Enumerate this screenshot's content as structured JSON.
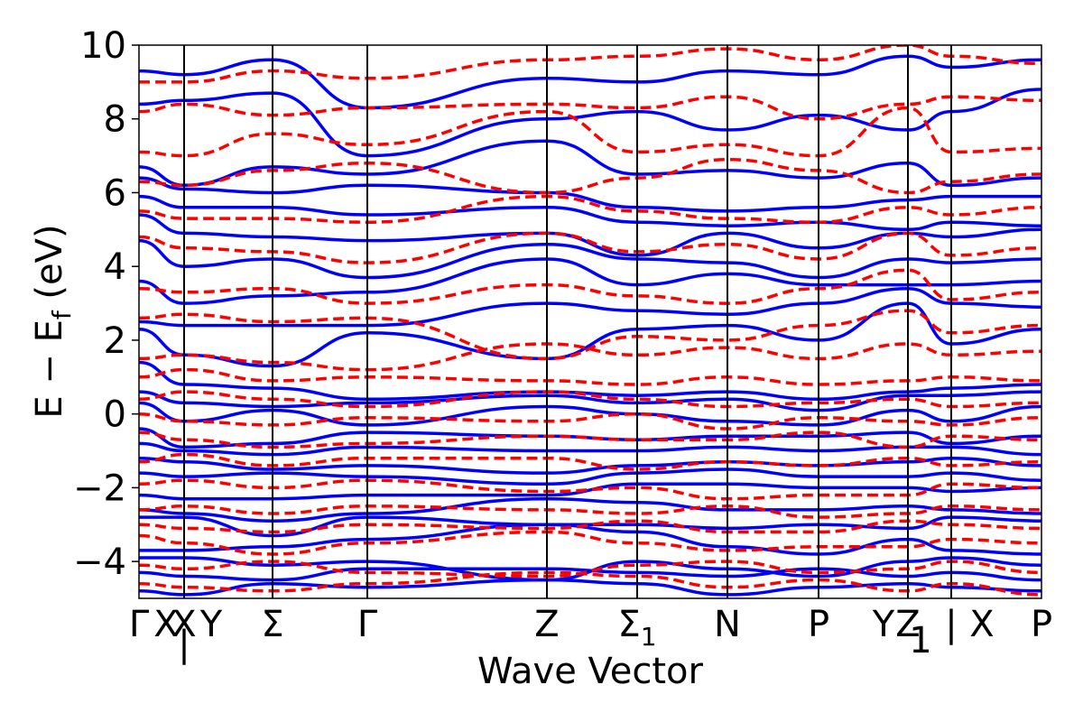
{
  "chart_data": {
    "type": "line",
    "title": "",
    "xlabel": "Wave Vector",
    "ylabel": "E − E_f (eV)",
    "ylabel_parts": {
      "main": "E − E",
      "sub": "f",
      "tail": " (eV)"
    },
    "ylim": [
      -5,
      10
    ],
    "yticks": [
      -4,
      -2,
      0,
      2,
      4,
      6,
      8,
      10
    ],
    "ytick_labels": [
      "−4",
      "−2",
      "0",
      "2",
      "4",
      "6",
      "8",
      "10"
    ],
    "grid": false,
    "legend": "none",
    "colors": {
      "series_a": "#0000ff",
      "series_b": "#ff0000",
      "axes": "#000000"
    },
    "series_styles": [
      {
        "name": "",
        "color": "#0000ff",
        "dash": "solid"
      },
      {
        "name": "",
        "color": "#ff0000",
        "dash": "dashed"
      }
    ],
    "kpath": [
      {
        "label": "Γ",
        "sub": "",
        "x": 0.0,
        "line": false
      },
      {
        "label": "X",
        "sub": "",
        "x": 0.03,
        "line": false
      },
      {
        "label": "X",
        "sub": "",
        "x": 0.05,
        "line": true
      },
      {
        "label": "|",
        "sub": "",
        "x": 0.05,
        "line": false,
        "dy": 22
      },
      {
        "label": "Y",
        "sub": "",
        "x": 0.08,
        "line": false
      },
      {
        "label": "Σ",
        "sub": "",
        "x": 0.148,
        "line": true
      },
      {
        "label": "Γ",
        "sub": "",
        "x": 0.253,
        "line": true
      },
      {
        "label": "Z",
        "sub": "",
        "x": 0.452,
        "line": true
      },
      {
        "label": "Σ",
        "sub": "1",
        "x": 0.552,
        "line": true
      },
      {
        "label": "N",
        "sub": "",
        "x": 0.652,
        "line": true
      },
      {
        "label": "P",
        "sub": "",
        "x": 0.753,
        "line": true
      },
      {
        "label": "Y",
        "sub": "",
        "x": 0.825,
        "line": false
      },
      {
        "label": "Z",
        "sub": "",
        "x": 0.852,
        "line": true
      },
      {
        "label": "1",
        "sub": "",
        "x": 0.866,
        "line": false,
        "dy": 18
      },
      {
        "label": "|",
        "sub": "",
        "x": 0.9,
        "line": true
      },
      {
        "label": "X",
        "sub": "",
        "x": 0.934,
        "line": false
      },
      {
        "label": "P",
        "sub": "",
        "x": 1.0,
        "line": false
      }
    ],
    "band_segments": [
      0.0,
      0.05,
      0.148,
      0.253,
      0.452,
      0.552,
      0.652,
      0.753,
      0.852,
      0.9,
      1.0
    ],
    "series": [
      {
        "name": "",
        "bands": [
          [
            -4.8,
            -4.9,
            -4.6,
            -4.7,
            -4.5,
            -4.6,
            -4.9,
            -4.7,
            -4.6,
            -4.7,
            -4.8
          ],
          [
            -4.3,
            -4.4,
            -4.5,
            -4.2,
            -4.2,
            -4.3,
            -4.4,
            -4.2,
            -4.4,
            -4.3,
            -4.5
          ],
          [
            -3.9,
            -3.9,
            -4.1,
            -4.0,
            -4.5,
            -4.0,
            -4.2,
            -4.4,
            -4.0,
            -3.9,
            -4.1
          ],
          [
            -3.7,
            -3.7,
            -3.6,
            -3.4,
            -3.0,
            -3.2,
            -3.6,
            -3.8,
            -3.4,
            -3.7,
            -3.8
          ],
          [
            -2.8,
            -2.8,
            -3.3,
            -2.8,
            -3.0,
            -3.0,
            -3.1,
            -3.0,
            -3.1,
            -2.8,
            -2.9
          ],
          [
            -2.6,
            -2.7,
            -2.9,
            -2.7,
            -2.3,
            -2.4,
            -2.6,
            -2.6,
            -2.5,
            -2.6,
            -2.7
          ],
          [
            -2.2,
            -2.3,
            -2.3,
            -2.2,
            -2.2,
            -1.9,
            -1.9,
            -2.0,
            -2.0,
            -2.1,
            -2.0
          ],
          [
            -1.6,
            -1.7,
            -1.6,
            -1.7,
            -1.9,
            -1.6,
            -1.5,
            -1.7,
            -1.7,
            -1.6,
            -1.8
          ],
          [
            -1.2,
            -1.3,
            -1.5,
            -1.4,
            -1.6,
            -1.4,
            -1.3,
            -1.4,
            -1.3,
            -1.2,
            -1.4
          ],
          [
            -0.8,
            -1.0,
            -1.1,
            -0.9,
            -1.0,
            -1.0,
            -0.9,
            -1.0,
            -0.9,
            -0.9,
            -1.1
          ],
          [
            -0.4,
            -0.9,
            -0.8,
            -0.5,
            -0.6,
            -0.7,
            -0.6,
            -0.6,
            -0.5,
            -0.8,
            -0.6
          ],
          [
            0.3,
            -0.2,
            0.1,
            -0.3,
            0.2,
            0.0,
            -0.2,
            -0.3,
            0.1,
            -0.2,
            0.2
          ],
          [
            0.6,
            0.3,
            0.2,
            0.3,
            0.5,
            0.3,
            0.4,
            0.1,
            0.5,
            0.5,
            0.6
          ],
          [
            1.4,
            0.8,
            0.7,
            0.4,
            0.6,
            0.5,
            0.6,
            0.4,
            0.6,
            0.7,
            0.8
          ],
          [
            2.3,
            1.6,
            1.3,
            2.2,
            1.5,
            2.3,
            2.4,
            2.0,
            3.0,
            1.9,
            2.3
          ],
          [
            2.5,
            2.4,
            2.4,
            2.4,
            3.0,
            2.8,
            2.7,
            3.0,
            3.4,
            3.0,
            2.9
          ],
          [
            3.6,
            3.0,
            3.2,
            3.3,
            4.2,
            3.5,
            3.8,
            3.5,
            3.5,
            3.5,
            3.6
          ],
          [
            4.7,
            4.0,
            4.2,
            3.7,
            4.6,
            4.2,
            4.1,
            3.7,
            4.2,
            4.1,
            4.2
          ],
          [
            5.4,
            4.9,
            4.8,
            4.7,
            4.9,
            4.3,
            4.9,
            4.5,
            4.9,
            4.8,
            5.0
          ],
          [
            5.9,
            5.6,
            5.6,
            5.4,
            5.6,
            5.2,
            5.1,
            5.2,
            5.0,
            5.2,
            5.1
          ],
          [
            6.4,
            6.1,
            6.0,
            6.2,
            6.0,
            5.6,
            5.5,
            5.6,
            5.8,
            5.9,
            5.9
          ],
          [
            6.7,
            6.2,
            6.7,
            6.5,
            7.4,
            6.5,
            6.6,
            6.4,
            6.8,
            6.2,
            6.4
          ],
          [
            8.4,
            8.5,
            8.7,
            7.0,
            8.0,
            8.2,
            7.7,
            8.1,
            7.7,
            8.2,
            8.8
          ],
          [
            9.3,
            9.2,
            9.6,
            8.3,
            9.1,
            9.0,
            9.3,
            9.2,
            9.7,
            9.4,
            9.6
          ]
        ]
      },
      {
        "name": "",
        "bands": [
          [
            -4.6,
            -4.7,
            -4.8,
            -4.6,
            -4.3,
            -4.4,
            -4.7,
            -4.5,
            -4.8,
            -4.6,
            -4.9
          ],
          [
            -4.1,
            -4.2,
            -4.0,
            -4.3,
            -4.4,
            -4.1,
            -4.0,
            -4.3,
            -4.2,
            -4.0,
            -4.3
          ],
          [
            -3.3,
            -3.5,
            -3.8,
            -3.5,
            -3.2,
            -3.5,
            -3.7,
            -3.6,
            -3.6,
            -3.4,
            -3.5
          ],
          [
            -3.0,
            -3.1,
            -3.2,
            -3.0,
            -3.1,
            -2.9,
            -3.2,
            -3.2,
            -2.9,
            -3.0,
            -3.1
          ],
          [
            -2.6,
            -2.5,
            -2.7,
            -2.5,
            -2.6,
            -2.7,
            -2.5,
            -2.8,
            -2.7,
            -2.5,
            -2.6
          ],
          [
            -1.9,
            -1.8,
            -2.0,
            -1.8,
            -2.1,
            -2.0,
            -2.3,
            -2.2,
            -2.2,
            -1.9,
            -2.0
          ],
          [
            -1.3,
            -1.1,
            -1.4,
            -1.2,
            -1.2,
            -1.5,
            -1.3,
            -1.4,
            -1.2,
            -1.4,
            -1.3
          ],
          [
            -0.5,
            -0.7,
            -0.9,
            -0.8,
            -0.6,
            -0.7,
            -0.7,
            -0.5,
            -0.9,
            -0.6,
            -0.7
          ],
          [
            0.0,
            -0.2,
            -0.3,
            -0.1,
            -0.2,
            0.0,
            -0.4,
            -0.1,
            -0.2,
            -0.3,
            -0.1
          ],
          [
            0.4,
            0.6,
            0.4,
            0.2,
            0.6,
            0.4,
            0.2,
            0.3,
            0.4,
            0.2,
            0.3
          ],
          [
            1.0,
            1.2,
            0.9,
            1.0,
            0.9,
            0.8,
            1.0,
            0.8,
            0.9,
            1.0,
            0.9
          ],
          [
            1.5,
            1.6,
            1.4,
            1.2,
            1.9,
            1.6,
            1.8,
            1.5,
            1.9,
            1.6,
            1.7
          ],
          [
            2.6,
            2.7,
            2.5,
            2.6,
            1.5,
            2.1,
            2.0,
            2.4,
            2.8,
            2.2,
            2.4
          ],
          [
            3.4,
            3.3,
            3.4,
            3.0,
            3.5,
            3.2,
            3.0,
            3.4,
            3.9,
            3.1,
            3.3
          ],
          [
            4.8,
            4.5,
            4.4,
            4.1,
            4.9,
            4.4,
            4.6,
            4.2,
            4.9,
            4.3,
            4.5
          ],
          [
            5.5,
            5.3,
            5.3,
            5.2,
            5.9,
            5.5,
            5.3,
            5.2,
            5.6,
            5.4,
            5.6
          ],
          [
            6.3,
            6.2,
            6.6,
            6.8,
            6.0,
            6.4,
            6.9,
            6.6,
            6.0,
            6.3,
            6.5
          ],
          [
            7.1,
            7.0,
            7.6,
            7.3,
            8.2,
            7.1,
            7.3,
            7.0,
            8.3,
            7.1,
            7.2
          ],
          [
            8.2,
            8.4,
            8.1,
            8.3,
            8.4,
            8.3,
            8.6,
            8.0,
            8.4,
            8.6,
            8.5
          ],
          [
            9.0,
            9.0,
            9.3,
            9.1,
            9.6,
            9.7,
            9.9,
            9.6,
            10.0,
            9.7,
            9.5
          ]
        ]
      }
    ]
  }
}
